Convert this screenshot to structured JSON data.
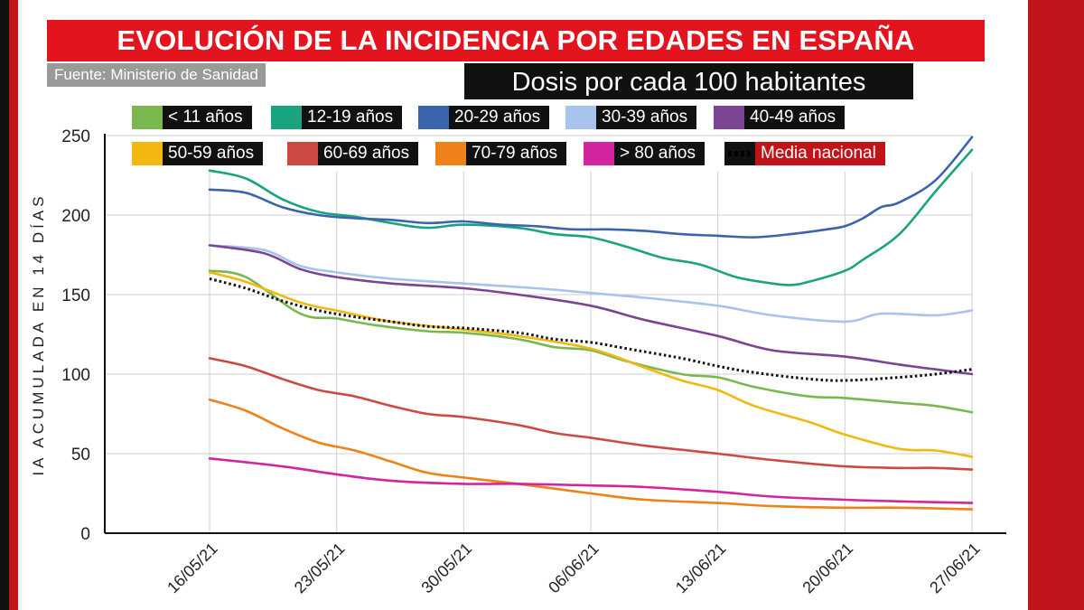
{
  "header": {
    "title": "EVOLUCIÓN DE LA INCIDENCIA POR EDADES EN ESPAÑA",
    "source": "Fuente: Ministerio de Sanidad",
    "subtitle": "Dosis por cada 100 habitantes"
  },
  "colors": {
    "title_bg": "#e3141e",
    "media_label_bg": "#c0131a"
  },
  "chart_data": {
    "type": "line",
    "ylabel": "IA ACUMULADA EN 14 DÍAS",
    "xlabel": "",
    "ylim": [
      0,
      250
    ],
    "yticks": [
      "0",
      "50",
      "100",
      "150",
      "200",
      "250"
    ],
    "x_tick_labels": [
      "16/05/21",
      "23/05/21",
      "30/05/21",
      "06/06/21",
      "13/06/21",
      "20/06/21",
      "27/06/21"
    ],
    "x_tick_days": [
      0,
      7,
      14,
      21,
      28,
      35,
      42
    ],
    "x_range": [
      0,
      42
    ],
    "grid_vertical": true,
    "grid_horizontal": true,
    "series": [
      {
        "name": "< 11 años",
        "color": "#7ab84f",
        "dashed": false,
        "x": [
          0,
          2,
          5,
          7,
          9,
          12,
          14,
          17,
          19,
          21,
          23,
          26,
          28,
          30,
          33,
          35,
          38,
          40,
          42
        ],
        "values": [
          165,
          161,
          138,
          135,
          131,
          127,
          126,
          122,
          117,
          115,
          108,
          100,
          98,
          92,
          86,
          85,
          82,
          80,
          76
        ]
      },
      {
        "name": "12-19 años",
        "color": "#1aa37f",
        "dashed": false,
        "x": [
          0,
          2,
          4,
          6,
          8,
          10,
          12,
          14,
          17,
          19,
          21,
          23,
          25,
          27,
          29,
          31,
          32,
          33,
          35,
          36,
          38,
          40,
          42
        ],
        "values": [
          228,
          223,
          210,
          202,
          199,
          195,
          192,
          194,
          192,
          188,
          186,
          180,
          173,
          169,
          161,
          157,
          156,
          158,
          165,
          172,
          188,
          215,
          241
        ]
      },
      {
        "name": "20-29 años",
        "color": "#3a64ad",
        "dashed": false,
        "x": [
          0,
          2,
          4,
          6,
          8,
          10,
          12,
          14,
          16,
          18,
          20,
          22,
          24,
          26,
          28,
          30,
          32,
          34,
          35,
          36,
          37,
          38,
          40,
          42
        ],
        "values": [
          216,
          214,
          205,
          200,
          198,
          197,
          195,
          196,
          194,
          193,
          191,
          191,
          190,
          188,
          187,
          186,
          188,
          191,
          193,
          198,
          205,
          208,
          222,
          249
        ]
      },
      {
        "name": "30-39 años",
        "color": "#a7c3ee",
        "dashed": false,
        "x": [
          0,
          3,
          5,
          7,
          10,
          14,
          18,
          21,
          24,
          28,
          31,
          35,
          37,
          40,
          42
        ],
        "values": [
          181,
          178,
          168,
          164,
          160,
          157,
          154,
          151,
          148,
          143,
          137,
          133,
          138,
          137,
          140
        ]
      },
      {
        "name": "40-49 años",
        "color": "#7b4593",
        "dashed": false,
        "x": [
          0,
          3,
          5,
          7,
          10,
          14,
          17,
          21,
          24,
          28,
          31,
          35,
          38,
          40,
          42
        ],
        "values": [
          181,
          176,
          166,
          161,
          157,
          154,
          150,
          143,
          134,
          124,
          115,
          111,
          106,
          103,
          100
        ]
      },
      {
        "name": "50-59 años",
        "color": "#f2b810",
        "dashed": false,
        "x": [
          0,
          2,
          5,
          7,
          10,
          14,
          17,
          21,
          24,
          26,
          28,
          30,
          33,
          35,
          38,
          40,
          42
        ],
        "values": [
          164,
          158,
          145,
          140,
          133,
          128,
          124,
          116,
          104,
          96,
          90,
          80,
          70,
          62,
          53,
          52,
          48
        ]
      },
      {
        "name": "60-69 años",
        "color": "#cb4b43",
        "dashed": false,
        "x": [
          0,
          2,
          4,
          6,
          8,
          10,
          12,
          14,
          17,
          19,
          21,
          24,
          28,
          31,
          35,
          38,
          40,
          42
        ],
        "values": [
          110,
          105,
          97,
          90,
          86,
          80,
          75,
          73,
          68,
          63,
          60,
          55,
          50,
          46,
          42,
          41,
          41,
          40
        ]
      },
      {
        "name": "70-79 años",
        "color": "#ee8218",
        "dashed": false,
        "x": [
          0,
          2,
          4,
          6,
          8,
          10,
          12,
          14,
          17,
          21,
          24,
          28,
          31,
          35,
          38,
          42
        ],
        "values": [
          84,
          77,
          66,
          57,
          52,
          45,
          38,
          35,
          31,
          25,
          21,
          19,
          17,
          16,
          16,
          15
        ]
      },
      {
        "name": "> 80 años",
        "color": "#d2259f",
        "dashed": false,
        "x": [
          0,
          4,
          7,
          10,
          14,
          17,
          21,
          24,
          28,
          31,
          35,
          38,
          42
        ],
        "values": [
          47,
          42,
          37,
          33,
          31,
          31,
          30,
          29,
          26,
          23,
          21,
          20,
          19
        ]
      },
      {
        "name": "Media nacional",
        "color": "#111111",
        "dashed": true,
        "x": [
          0,
          2,
          4,
          6,
          8,
          10,
          12,
          14,
          17,
          19,
          21,
          23,
          26,
          28,
          30,
          33,
          35,
          38,
          40,
          42
        ],
        "values": [
          160,
          154,
          146,
          140,
          136,
          133,
          130,
          129,
          126,
          122,
          120,
          116,
          110,
          105,
          101,
          97,
          96,
          98,
          100,
          103
        ]
      }
    ]
  }
}
